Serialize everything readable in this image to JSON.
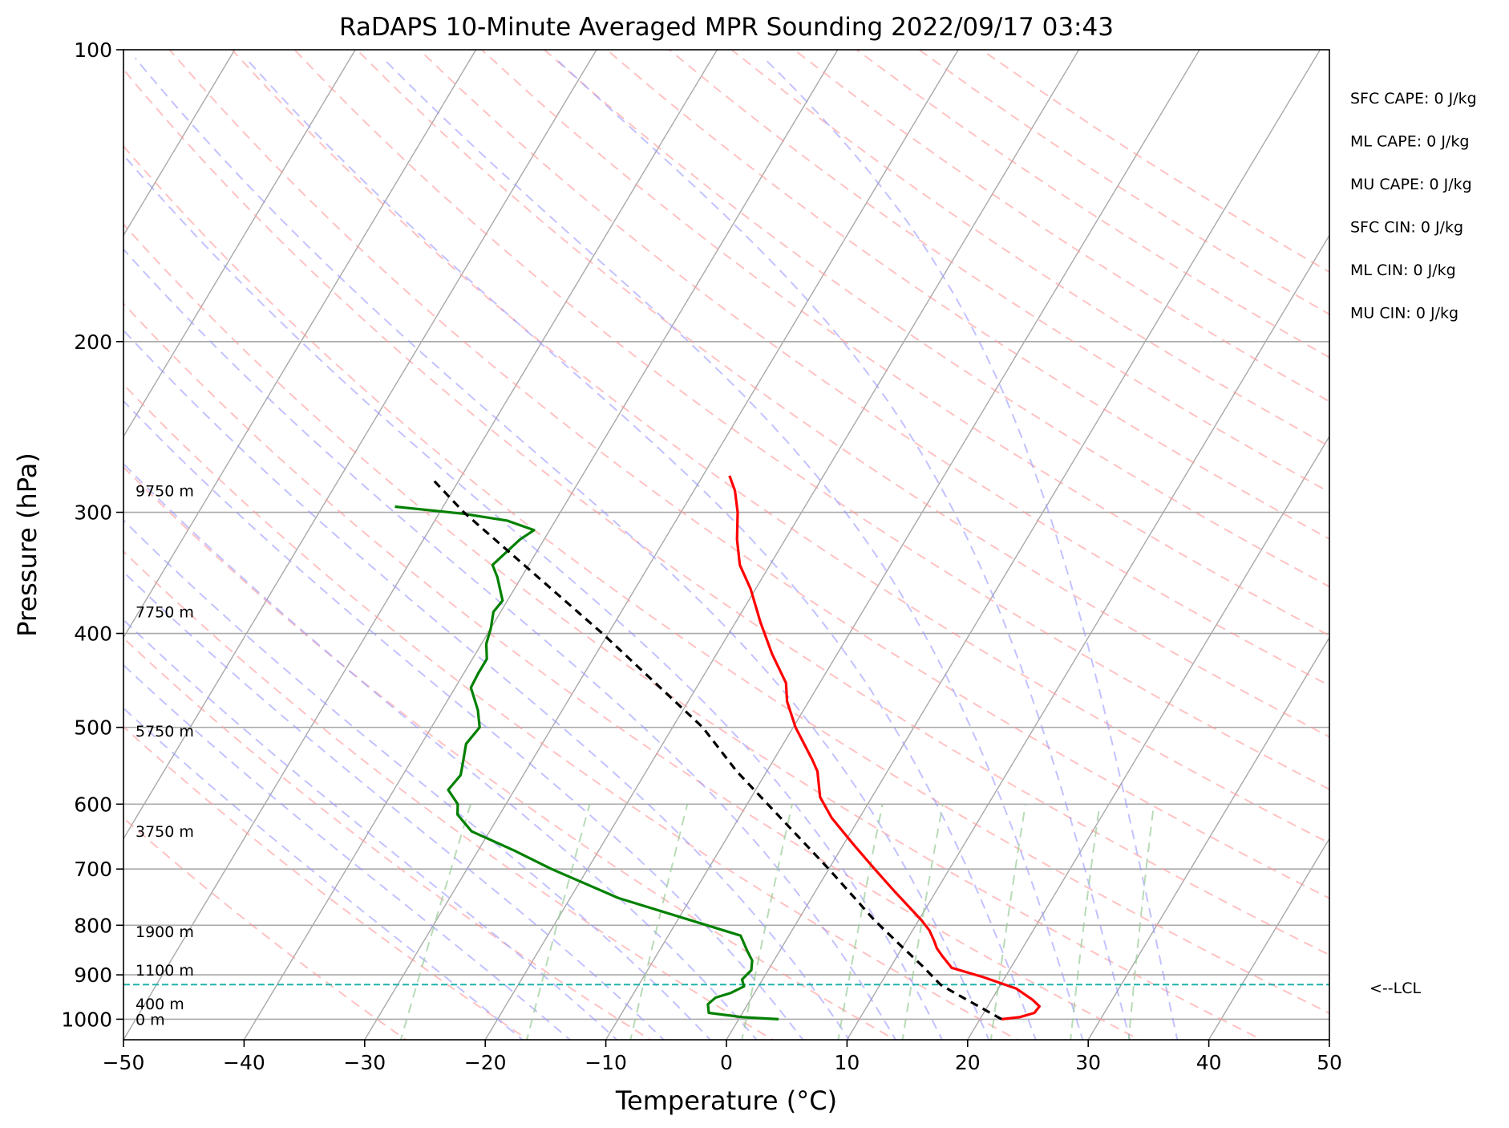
{
  "chart_data": {
    "type": "skew-t",
    "title": "RaDAPS 10-Minute Averaged MPR Sounding 2022/09/17 03:43",
    "xlabel": "Temperature (°C)",
    "ylabel": "Pressure (hPa)",
    "xlim": [
      -50,
      50
    ],
    "ylim": [
      1050,
      100
    ],
    "y_scale": "log",
    "x_ticks": [
      "−50",
      "−40",
      "−30",
      "−20",
      "−10",
      "0",
      "10",
      "20",
      "30",
      "40",
      "50"
    ],
    "y_ticks": [
      "100",
      "200",
      "300",
      "400",
      "500",
      "600",
      "700",
      "800",
      "900",
      "1000"
    ],
    "height_labels": [
      {
        "p": 1000,
        "text": "0 m"
      },
      {
        "p": 964,
        "text": "400 m"
      },
      {
        "p": 890,
        "text": "1100 m"
      },
      {
        "p": 812,
        "text": "1900 m"
      },
      {
        "p": 640,
        "text": "3750 m"
      },
      {
        "p": 504,
        "text": "5750 m"
      },
      {
        "p": 380,
        "text": "7750 m"
      },
      {
        "p": 285,
        "text": "9750 m"
      }
    ],
    "lcl": {
      "p": 921,
      "label": "<--LCL"
    },
    "indices": [
      "SFC CAPE: 0 J/kg",
      "ML CAPE: 0 J/kg",
      "MU CAPE: 0 J/kg",
      "SFC CIN: 0 J/kg",
      "ML CIN: 0 J/kg",
      "MU CIN: 0 J/kg"
    ],
    "series": [
      {
        "role": "temperature",
        "color": "#ff0000",
        "points": [
          [
            1000,
            21.8
          ],
          [
            995,
            23.2
          ],
          [
            985,
            24.2
          ],
          [
            970,
            24.3
          ],
          [
            955,
            23.4
          ],
          [
            930,
            21.5
          ],
          [
            905,
            18.2
          ],
          [
            885,
            15.1
          ],
          [
            860,
            13.7
          ],
          [
            845,
            12.9
          ],
          [
            830,
            12.3
          ],
          [
            810,
            11.4
          ],
          [
            790,
            10.2
          ],
          [
            740,
            6.7
          ],
          [
            700,
            3.8
          ],
          [
            660,
            0.8
          ],
          [
            620,
            -2.3
          ],
          [
            590,
            -4.3
          ],
          [
            555,
            -5.8
          ],
          [
            540,
            -6.8
          ],
          [
            500,
            -9.8
          ],
          [
            470,
            -11.8
          ],
          [
            450,
            -12.8
          ],
          [
            420,
            -15.4
          ],
          [
            390,
            -17.9
          ],
          [
            360,
            -20.4
          ],
          [
            340,
            -22.5
          ],
          [
            320,
            -24.0
          ],
          [
            300,
            -25.3
          ],
          [
            285,
            -26.6
          ],
          [
            275,
            -27.8
          ]
        ]
      },
      {
        "role": "dewpoint",
        "color": "#008000",
        "points": [
          [
            1000,
            3.3
          ],
          [
            995,
            0.2
          ],
          [
            985,
            -2.8
          ],
          [
            965,
            -3.3
          ],
          [
            950,
            -3.0
          ],
          [
            940,
            -2.0
          ],
          [
            925,
            -1.2
          ],
          [
            910,
            -1.7
          ],
          [
            890,
            -1.4
          ],
          [
            870,
            -1.8
          ],
          [
            850,
            -2.7
          ],
          [
            820,
            -4.0
          ],
          [
            790,
            -9.0
          ],
          [
            750,
            -16.0
          ],
          [
            700,
            -23.0
          ],
          [
            670,
            -27.0
          ],
          [
            640,
            -31.5
          ],
          [
            615,
            -33.5
          ],
          [
            600,
            -34.0
          ],
          [
            580,
            -35.5
          ],
          [
            560,
            -35.2
          ],
          [
            545,
            -35.6
          ],
          [
            520,
            -36.3
          ],
          [
            500,
            -36.0
          ],
          [
            480,
            -37.0
          ],
          [
            455,
            -38.7
          ],
          [
            440,
            -38.8
          ],
          [
            425,
            -38.8
          ],
          [
            410,
            -39.6
          ],
          [
            395,
            -40.0
          ],
          [
            380,
            -40.6
          ],
          [
            370,
            -40.4
          ],
          [
            350,
            -42.0
          ],
          [
            340,
            -43.0
          ],
          [
            320,
            -42.0
          ],
          [
            313,
            -41.3
          ],
          [
            306,
            -44.0
          ],
          [
            301,
            -48.0
          ],
          [
            296,
            -54.0
          ]
        ]
      },
      {
        "role": "parcel",
        "color": "#000000",
        "dashed": true,
        "points": [
          [
            1000,
            21.8
          ],
          [
            960,
            18.4
          ],
          [
            935,
            16.2
          ],
          [
            921,
            15.0
          ],
          [
            880,
            12.5
          ],
          [
            840,
            9.8
          ],
          [
            790,
            6.3
          ],
          [
            700,
            0.0
          ],
          [
            600,
            -8.3
          ],
          [
            555,
            -12.5
          ],
          [
            500,
            -17.5
          ],
          [
            400,
            -30.5
          ],
          [
            300,
            -48.0
          ],
          [
            276,
            -52.5
          ]
        ]
      }
    ],
    "background": {
      "isotherm_color": "#a9a9a9",
      "isobar_color": "#a9a9a9",
      "dry_adiabat_color": "#ff9999",
      "moist_adiabat_color": "#9999ff",
      "mixing_ratio_color": "#99cc99",
      "lcl_line_color": "#20b2aa"
    }
  }
}
